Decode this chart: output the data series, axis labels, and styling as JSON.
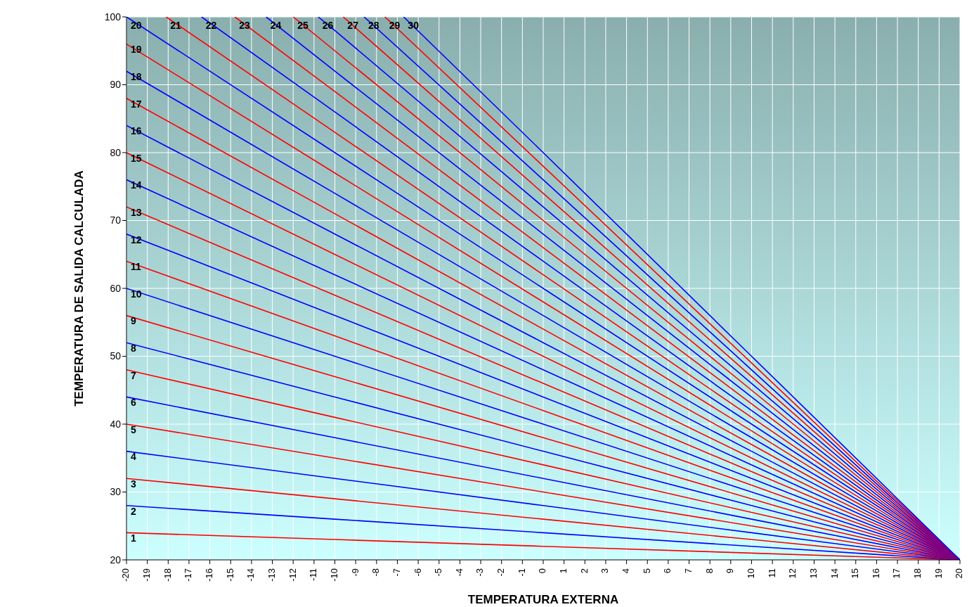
{
  "chart_data": {
    "type": "line",
    "xlabel": "TEMPERATURA EXTERNA",
    "ylabel": "TEMPERATURA DE SALIDA CALCULADA",
    "xlim": [
      -20,
      20
    ],
    "xticks": [
      -20,
      -19,
      -18,
      -17,
      -16,
      -15,
      -14,
      -13,
      -12,
      -11,
      -10,
      -9,
      -8,
      -7,
      -6,
      -5,
      -4,
      -3,
      -2,
      -1,
      0,
      1,
      2,
      3,
      4,
      5,
      6,
      7,
      8,
      9,
      10,
      11,
      12,
      13,
      14,
      15,
      16,
      17,
      18,
      19,
      20
    ],
    "ylim": [
      20,
      100
    ],
    "yticks": [
      20,
      30,
      40,
      50,
      60,
      70,
      80,
      90,
      100
    ],
    "grid": true,
    "legend": false,
    "marker": "none",
    "line_style": "solid",
    "series": [
      {
        "name": "1",
        "color": "#ff0000",
        "x": [
          -20,
          -10,
          0,
          10,
          20
        ],
        "values": [
          24,
          23,
          22,
          21,
          20
        ]
      },
      {
        "name": "2",
        "color": "#0000ff",
        "x": [
          -20,
          -10,
          0,
          10,
          20
        ],
        "values": [
          28,
          26,
          24,
          22,
          20
        ]
      },
      {
        "name": "3",
        "color": "#ff0000",
        "x": [
          -20,
          -10,
          0,
          10,
          20
        ],
        "values": [
          32,
          29,
          26,
          23,
          20
        ]
      },
      {
        "name": "4",
        "color": "#0000ff",
        "x": [
          -20,
          -10,
          0,
          10,
          20
        ],
        "values": [
          36,
          32,
          28,
          24,
          20
        ]
      },
      {
        "name": "5",
        "color": "#ff0000",
        "x": [
          -20,
          -10,
          0,
          10,
          20
        ],
        "values": [
          40,
          35,
          30,
          25,
          20
        ]
      },
      {
        "name": "6",
        "color": "#0000ff",
        "x": [
          -20,
          -10,
          0,
          10,
          20
        ],
        "values": [
          44,
          38,
          32,
          26,
          20
        ]
      },
      {
        "name": "7",
        "color": "#ff0000",
        "x": [
          -20,
          -10,
          0,
          10,
          20
        ],
        "values": [
          48,
          41,
          34,
          27,
          20
        ]
      },
      {
        "name": "8",
        "color": "#0000ff",
        "x": [
          -20,
          -10,
          0,
          10,
          20
        ],
        "values": [
          52,
          44,
          36,
          28,
          20
        ]
      },
      {
        "name": "9",
        "color": "#ff0000",
        "x": [
          -20,
          -10,
          0,
          10,
          20
        ],
        "values": [
          56,
          47,
          38,
          29,
          20
        ]
      },
      {
        "name": "10",
        "color": "#0000ff",
        "x": [
          -20,
          -10,
          0,
          10,
          20
        ],
        "values": [
          60,
          50,
          40,
          30,
          20
        ]
      },
      {
        "name": "11",
        "color": "#ff0000",
        "x": [
          -20,
          -10,
          0,
          10,
          20
        ],
        "values": [
          64,
          53,
          42,
          31,
          20
        ]
      },
      {
        "name": "12",
        "color": "#0000ff",
        "x": [
          -20,
          -10,
          0,
          10,
          20
        ],
        "values": [
          68,
          56,
          44,
          32,
          20
        ]
      },
      {
        "name": "13",
        "color": "#ff0000",
        "x": [
          -20,
          -10,
          0,
          10,
          20
        ],
        "values": [
          72,
          59,
          46,
          33,
          20
        ]
      },
      {
        "name": "14",
        "color": "#0000ff",
        "x": [
          -20,
          -10,
          0,
          10,
          20
        ],
        "values": [
          76,
          62,
          48,
          34,
          20
        ]
      },
      {
        "name": "15",
        "color": "#ff0000",
        "x": [
          -20,
          -10,
          0,
          10,
          20
        ],
        "values": [
          80,
          65,
          50,
          35,
          20
        ]
      },
      {
        "name": "16",
        "color": "#0000ff",
        "x": [
          -20,
          -10,
          0,
          10,
          20
        ],
        "values": [
          84,
          68,
          52,
          36,
          20
        ]
      },
      {
        "name": "17",
        "color": "#ff0000",
        "x": [
          -20,
          -10,
          0,
          10,
          20
        ],
        "values": [
          88,
          71,
          54,
          37,
          20
        ]
      },
      {
        "name": "18",
        "color": "#0000ff",
        "x": [
          -20,
          -10,
          0,
          10,
          20
        ],
        "values": [
          92,
          74,
          56,
          38,
          20
        ]
      },
      {
        "name": "19",
        "color": "#ff0000",
        "x": [
          -20,
          -10,
          0,
          10,
          20
        ],
        "values": [
          96,
          77,
          58,
          39,
          20
        ]
      },
      {
        "name": "20",
        "color": "#0000ff",
        "x": [
          -20,
          -10,
          0,
          10,
          20
        ],
        "values": [
          100,
          80,
          60,
          40,
          20
        ]
      },
      {
        "name": "21",
        "color": "#ff0000",
        "x": [
          -18.1,
          -10,
          0,
          10,
          20
        ],
        "values": [
          100,
          83,
          62,
          41,
          20
        ]
      },
      {
        "name": "22",
        "color": "#0000ff",
        "x": [
          -16.4,
          -10,
          0,
          10,
          20
        ],
        "values": [
          100,
          86,
          64,
          42,
          20
        ]
      },
      {
        "name": "23",
        "color": "#ff0000",
        "x": [
          -14.8,
          -10,
          0,
          10,
          20
        ],
        "values": [
          100,
          89,
          66,
          43,
          20
        ]
      },
      {
        "name": "24",
        "color": "#0000ff",
        "x": [
          -13.3,
          -10,
          0,
          10,
          20
        ],
        "values": [
          100,
          92,
          68,
          44,
          20
        ]
      },
      {
        "name": "25",
        "color": "#ff0000",
        "x": [
          -12,
          -10,
          0,
          10,
          20
        ],
        "values": [
          100,
          95,
          70,
          45,
          20
        ]
      },
      {
        "name": "26",
        "color": "#0000ff",
        "x": [
          -10.8,
          -10,
          0,
          10,
          20
        ],
        "values": [
          100,
          98,
          72,
          46,
          20
        ]
      },
      {
        "name": "27",
        "color": "#ff0000",
        "x": [
          -9.6,
          0,
          10,
          20
        ],
        "values": [
          100,
          74,
          47,
          20
        ]
      },
      {
        "name": "28",
        "color": "#0000ff",
        "x": [
          -8.6,
          0,
          10,
          20
        ],
        "values": [
          100,
          76,
          48,
          20
        ]
      },
      {
        "name": "29",
        "color": "#ff0000",
        "x": [
          -7.6,
          0,
          10,
          20
        ],
        "values": [
          100,
          78,
          49,
          20
        ]
      },
      {
        "name": "30",
        "color": "#0000ff",
        "x": [
          -6.7,
          0,
          10,
          20
        ],
        "values": [
          100,
          80,
          50,
          20
        ]
      }
    ]
  }
}
